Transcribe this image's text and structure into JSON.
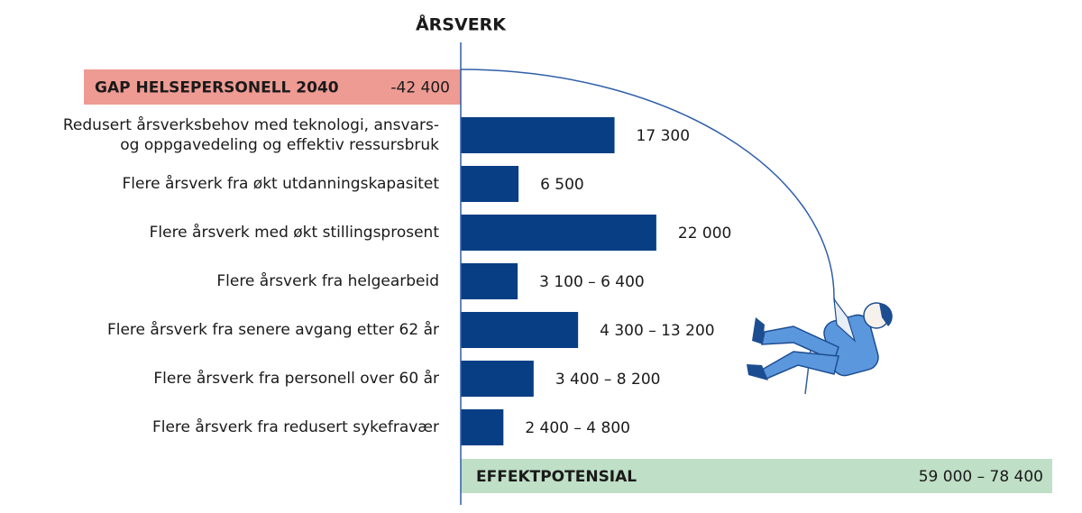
{
  "chart_data": {
    "type": "bar",
    "title": "ÅRSVERK",
    "gap": {
      "label": "GAP HELSEPERSONELL 2040",
      "value": -42400,
      "value_label": "-42 400",
      "color": "#ee9b93"
    },
    "categories": [
      "Redusert årsverksbehov med teknologi, ansvars-\nog oppgavedeling og effektiv ressursbruk",
      "Flere årsverk fra økt utdanningskapasitet",
      "Flere årsverk med økt stillingsprosent",
      "Flere årsverk fra helgearbeid",
      "Flere årsverk fra senere avgang etter 62 år",
      "Flere årsverk fra personell over 60 år",
      "Flere årsverk fra redusert sykefravær"
    ],
    "values": [
      17300,
      6500,
      22000,
      6400,
      13200,
      8200,
      4800
    ],
    "value_labels": [
      "17 300",
      "6 500",
      "22 000",
      "3 100 – 6 400",
      "4 300 – 13 200",
      "3 400 – 8 200",
      "2 400 – 4 800"
    ],
    "color": "#083e84",
    "total": {
      "label": "EFFEKTPOTENSIAL",
      "value_label": "59 000 – 78 400",
      "color": "#bfdfc6"
    }
  }
}
